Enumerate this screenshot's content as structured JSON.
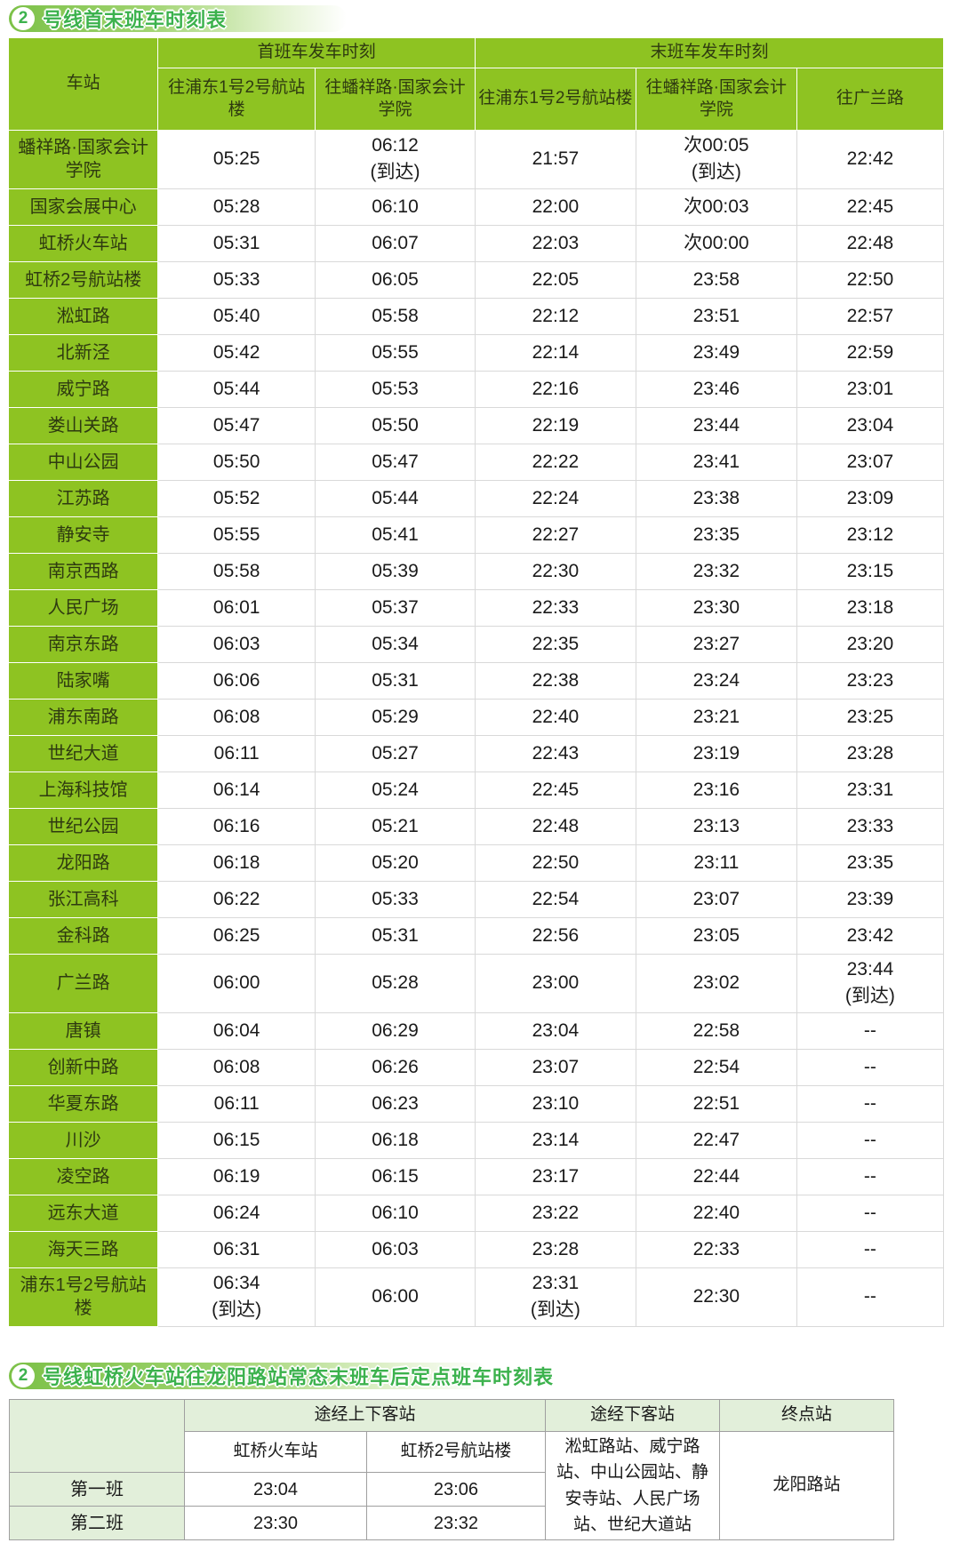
{
  "colors": {
    "table_green": "#8ec322",
    "title_green": "#3cb24d",
    "table2_tint": "#e2efda"
  },
  "table1": {
    "badge": "2",
    "title": "号线首末班车时刻表",
    "header": {
      "station": "车站",
      "first_group": "首班车发车时刻",
      "last_group": "末班车发车时刻",
      "dir_pudong": "往浦东1号2号航站楼",
      "dir_panxiang": "往蟠祥路·国家会计学院",
      "dir_guanglan": "往广兰路"
    },
    "rows": [
      {
        "station": "蟠祥路·国家会计学院",
        "first_pudong": "05:25",
        "first_panxiang": "06:12\n(到达)",
        "last_pudong": "21:57",
        "last_panxiang": "次00:05\n(到达)",
        "last_guanglan": "22:42"
      },
      {
        "station": "国家会展中心",
        "first_pudong": "05:28",
        "first_panxiang": "06:10",
        "last_pudong": "22:00",
        "last_panxiang": "次00:03",
        "last_guanglan": "22:45"
      },
      {
        "station": "虹桥火车站",
        "first_pudong": "05:31",
        "first_panxiang": "06:07",
        "last_pudong": "22:03",
        "last_panxiang": "次00:00",
        "last_guanglan": "22:48"
      },
      {
        "station": "虹桥2号航站楼",
        "first_pudong": "05:33",
        "first_panxiang": "06:05",
        "last_pudong": "22:05",
        "last_panxiang": "23:58",
        "last_guanglan": "22:50"
      },
      {
        "station": "淞虹路",
        "first_pudong": "05:40",
        "first_panxiang": "05:58",
        "last_pudong": "22:12",
        "last_panxiang": "23:51",
        "last_guanglan": "22:57"
      },
      {
        "station": "北新泾",
        "first_pudong": "05:42",
        "first_panxiang": "05:55",
        "last_pudong": "22:14",
        "last_panxiang": "23:49",
        "last_guanglan": "22:59"
      },
      {
        "station": "威宁路",
        "first_pudong": "05:44",
        "first_panxiang": "05:53",
        "last_pudong": "22:16",
        "last_panxiang": "23:46",
        "last_guanglan": "23:01"
      },
      {
        "station": "娄山关路",
        "first_pudong": "05:47",
        "first_panxiang": "05:50",
        "last_pudong": "22:19",
        "last_panxiang": "23:44",
        "last_guanglan": "23:04"
      },
      {
        "station": "中山公园",
        "first_pudong": "05:50",
        "first_panxiang": "05:47",
        "last_pudong": "22:22",
        "last_panxiang": "23:41",
        "last_guanglan": "23:07"
      },
      {
        "station": "江苏路",
        "first_pudong": "05:52",
        "first_panxiang": "05:44",
        "last_pudong": "22:24",
        "last_panxiang": "23:38",
        "last_guanglan": "23:09"
      },
      {
        "station": "静安寺",
        "first_pudong": "05:55",
        "first_panxiang": "05:41",
        "last_pudong": "22:27",
        "last_panxiang": "23:35",
        "last_guanglan": "23:12"
      },
      {
        "station": "南京西路",
        "first_pudong": "05:58",
        "first_panxiang": "05:39",
        "last_pudong": "22:30",
        "last_panxiang": "23:32",
        "last_guanglan": "23:15"
      },
      {
        "station": "人民广场",
        "first_pudong": "06:01",
        "first_panxiang": "05:37",
        "last_pudong": "22:33",
        "last_panxiang": "23:30",
        "last_guanglan": "23:18"
      },
      {
        "station": "南京东路",
        "first_pudong": "06:03",
        "first_panxiang": "05:34",
        "last_pudong": "22:35",
        "last_panxiang": "23:27",
        "last_guanglan": "23:20"
      },
      {
        "station": "陆家嘴",
        "first_pudong": "06:06",
        "first_panxiang": "05:31",
        "last_pudong": "22:38",
        "last_panxiang": "23:24",
        "last_guanglan": "23:23"
      },
      {
        "station": "浦东南路",
        "first_pudong": "06:08",
        "first_panxiang": "05:29",
        "last_pudong": "22:40",
        "last_panxiang": "23:21",
        "last_guanglan": "23:25"
      },
      {
        "station": "世纪大道",
        "first_pudong": "06:11",
        "first_panxiang": "05:27",
        "last_pudong": "22:43",
        "last_panxiang": "23:19",
        "last_guanglan": "23:28"
      },
      {
        "station": "上海科技馆",
        "first_pudong": "06:14",
        "first_panxiang": "05:24",
        "last_pudong": "22:45",
        "last_panxiang": "23:16",
        "last_guanglan": "23:31"
      },
      {
        "station": "世纪公园",
        "first_pudong": "06:16",
        "first_panxiang": "05:21",
        "last_pudong": "22:48",
        "last_panxiang": "23:13",
        "last_guanglan": "23:33"
      },
      {
        "station": "龙阳路",
        "first_pudong": "06:18",
        "first_panxiang": "05:20",
        "last_pudong": "22:50",
        "last_panxiang": "23:11",
        "last_guanglan": "23:35"
      },
      {
        "station": "张江高科",
        "first_pudong": "06:22",
        "first_panxiang": "05:33",
        "last_pudong": "22:54",
        "last_panxiang": "23:07",
        "last_guanglan": "23:39"
      },
      {
        "station": "金科路",
        "first_pudong": "06:25",
        "first_panxiang": "05:31",
        "last_pudong": "22:56",
        "last_panxiang": "23:05",
        "last_guanglan": "23:42"
      },
      {
        "station": "广兰路",
        "first_pudong": "06:00",
        "first_panxiang": "05:28",
        "last_pudong": "23:00",
        "last_panxiang": "23:02",
        "last_guanglan": "23:44\n(到达)"
      },
      {
        "station": "唐镇",
        "first_pudong": "06:04",
        "first_panxiang": "06:29",
        "last_pudong": "23:04",
        "last_panxiang": "22:58",
        "last_guanglan": "--"
      },
      {
        "station": "创新中路",
        "first_pudong": "06:08",
        "first_panxiang": "06:26",
        "last_pudong": "23:07",
        "last_panxiang": "22:54",
        "last_guanglan": "--"
      },
      {
        "station": "华夏东路",
        "first_pudong": "06:11",
        "first_panxiang": "06:23",
        "last_pudong": "23:10",
        "last_panxiang": "22:51",
        "last_guanglan": "--"
      },
      {
        "station": "川沙",
        "first_pudong": "06:15",
        "first_panxiang": "06:18",
        "last_pudong": "23:14",
        "last_panxiang": "22:47",
        "last_guanglan": "--"
      },
      {
        "station": "凌空路",
        "first_pudong": "06:19",
        "first_panxiang": "06:15",
        "last_pudong": "23:17",
        "last_panxiang": "22:44",
        "last_guanglan": "--"
      },
      {
        "station": "远东大道",
        "first_pudong": "06:24",
        "first_panxiang": "06:10",
        "last_pudong": "23:22",
        "last_panxiang": "22:40",
        "last_guanglan": "--"
      },
      {
        "station": "海天三路",
        "first_pudong": "06:31",
        "first_panxiang": "06:03",
        "last_pudong": "23:28",
        "last_panxiang": "22:33",
        "last_guanglan": "--"
      },
      {
        "station": "浦东1号2号航站楼",
        "first_pudong": "06:34\n(到达)",
        "first_panxiang": "06:00",
        "last_pudong": "23:31\n(到达)",
        "last_panxiang": "22:30",
        "last_guanglan": "--"
      }
    ]
  },
  "table2": {
    "badge": "2",
    "title": "号线虹桥火车站往龙阳路站常态末班车后定点班车时刻表",
    "header": {
      "boarding_group": "途经上下客站",
      "col_hongqiao_rail": "虹桥火车站",
      "col_hongqiao_t2": "虹桥2号航站楼",
      "dropoff": "途经下客站",
      "terminal": "终点站"
    },
    "dropoff_stations": "淞虹路站、威宁路站、中山公园站、静安寺站、人民广场站、世纪大道站",
    "terminal_station": "龙阳路站",
    "rows": [
      {
        "label": "第一班",
        "hongqiao_rail": "23:04",
        "hongqiao_t2": "23:06"
      },
      {
        "label": "第二班",
        "hongqiao_rail": "23:30",
        "hongqiao_t2": "23:32"
      }
    ]
  }
}
